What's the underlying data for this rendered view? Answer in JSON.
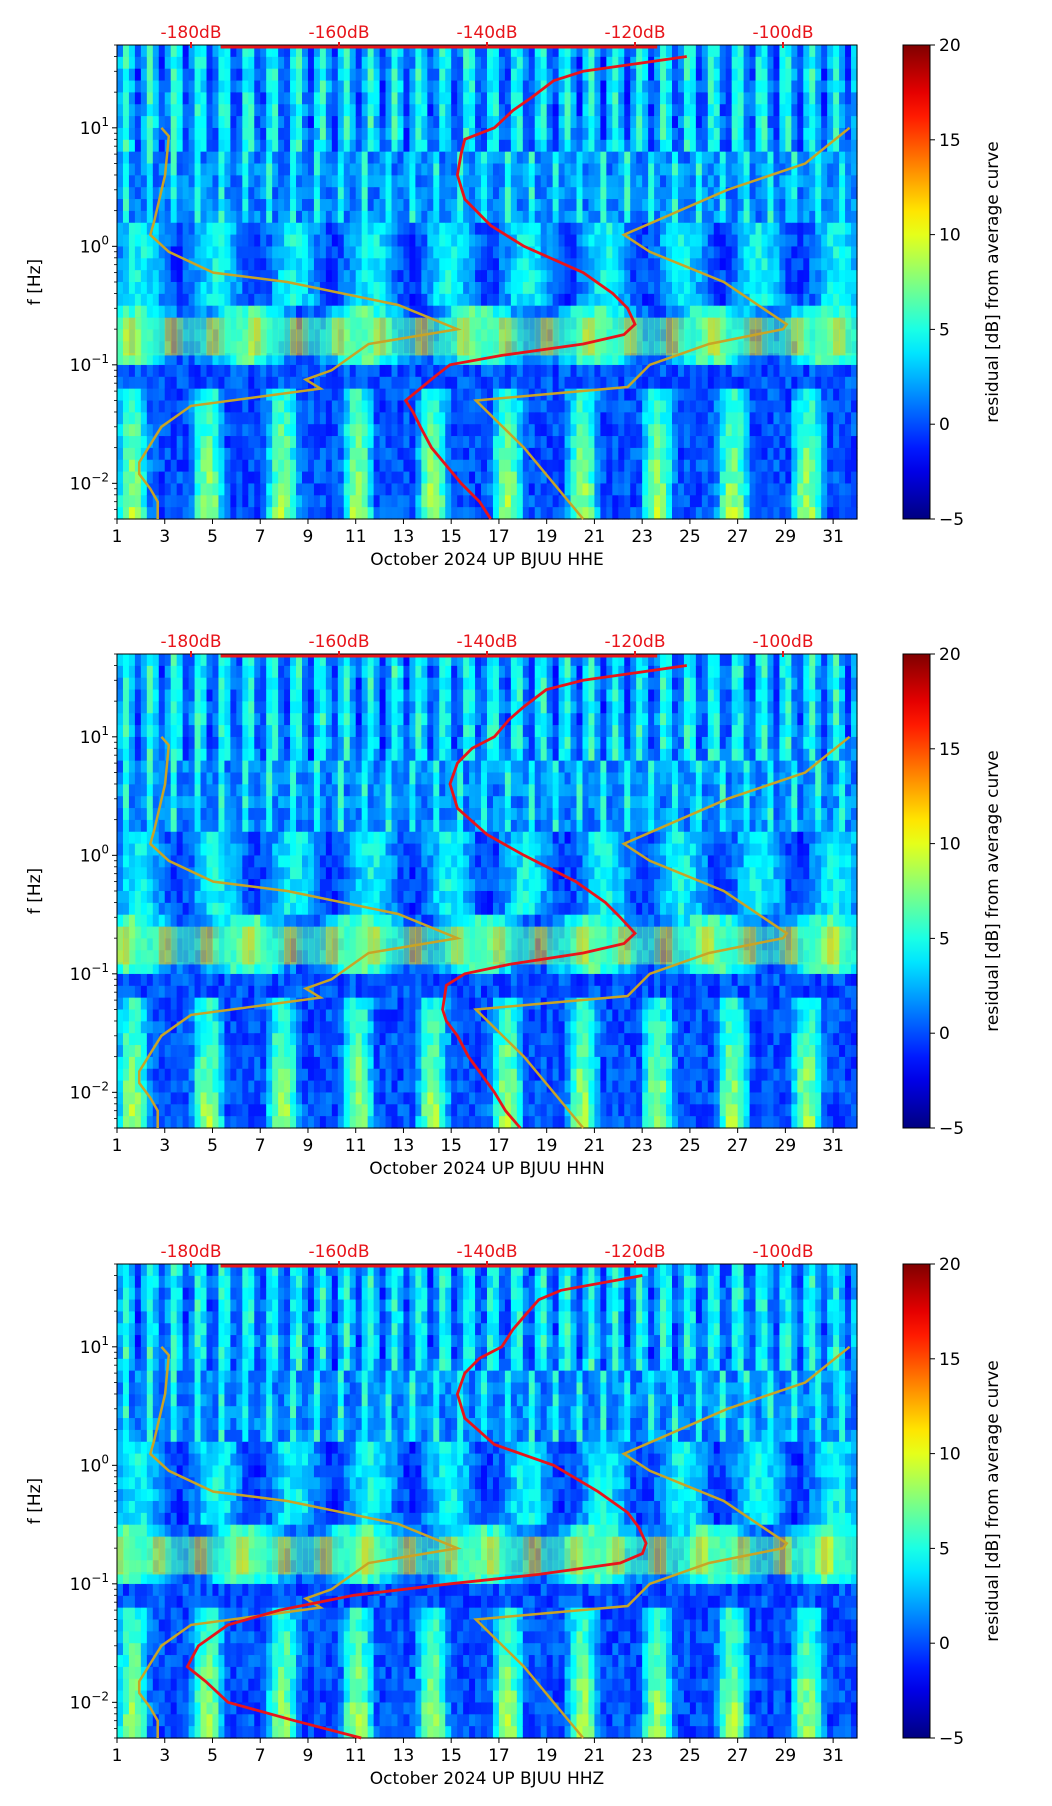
{
  "page": {
    "description_free": true
  },
  "palette": {
    "nlnm_color": "#c8a426",
    "average_color": "#e8141a",
    "db_label_color": "#e8141a"
  },
  "chart_data": [
    {
      "type": "heatmap",
      "station": "HHE",
      "xlabel": "October 2024 UP BJUU  HHE",
      "ylabel": "f [Hz]",
      "x_range": [
        1,
        32
      ],
      "x_ticks": [
        "1",
        "3",
        "5",
        "7",
        "9",
        "11",
        "13",
        "15",
        "17",
        "19",
        "21",
        "23",
        "25",
        "27",
        "29",
        "31"
      ],
      "y_range": [
        0.005,
        50
      ],
      "y_scale": "log",
      "y_ticks": [
        {
          "value": 0.01,
          "base": "10",
          "exp": "−2"
        },
        {
          "value": 0.1,
          "base": "10",
          "exp": "−1"
        },
        {
          "value": 1,
          "base": "10",
          "exp": "0"
        },
        {
          "value": 10,
          "base": "10",
          "exp": "1"
        }
      ],
      "db_axis": {
        "labels": [
          "-180dB",
          "-160dB",
          "-140dB",
          "-120dB",
          "-100dB"
        ],
        "values": [
          -180,
          -160,
          -140,
          -120,
          -100
        ],
        "range": [
          -190,
          -90
        ]
      },
      "colorbar": {
        "label": "residual [dB] from average curve",
        "range": [
          -5,
          20
        ],
        "ticks": [
          "−5",
          "0",
          "5",
          "10",
          "15",
          "20"
        ],
        "tick_values": [
          -5,
          0,
          5,
          10,
          15,
          20
        ],
        "colormap": "jet"
      },
      "nlnm_curve": {
        "freq": [
          10,
          8.5,
          4,
          1.6,
          1.25,
          0.9,
          0.6,
          0.5,
          0.32,
          0.2,
          0.15,
          0.09,
          0.075,
          0.063,
          0.045,
          0.03,
          0.015,
          0.012,
          0.009,
          0.007,
          0.005
        ],
        "db": [
          -184,
          -183,
          -183.5,
          -185,
          -185.5,
          -183,
          -177,
          -167,
          -152,
          -144,
          -156,
          -161,
          -164.5,
          -162.5,
          -180,
          -184,
          -187,
          -187,
          -185.5,
          -184.5,
          -184.5
        ]
      },
      "nhnm_curve": {
        "freq": [
          10,
          5,
          3,
          1.25,
          0.9,
          0.5,
          0.22,
          0.2,
          0.15,
          0.1,
          0.065,
          0.05,
          0.02,
          0.005
        ],
        "db": [
          -91,
          -97,
          -107.5,
          -121.5,
          -118,
          -108,
          -99.5,
          -100,
          -110,
          -118,
          -121,
          -141.5,
          -135,
          -127
        ]
      },
      "average_curve": {
        "freq": [
          40,
          30,
          25,
          18,
          14,
          10,
          8,
          6,
          4,
          2.5,
          1.5,
          1,
          0.6,
          0.4,
          0.3,
          0.22,
          0.18,
          0.15,
          0.12,
          0.1,
          0.08,
          0.05,
          0.04,
          0.03,
          0.02,
          0.01,
          0.007,
          0.005
        ],
        "db": [
          -113,
          -127,
          -131,
          -134,
          -136.5,
          -139,
          -143,
          -143.5,
          -144,
          -143,
          -139.5,
          -135,
          -127,
          -123,
          -121,
          -120,
          -121.5,
          -127,
          -138,
          -145,
          -147,
          -151,
          -150,
          -149,
          -147.5,
          -143.5,
          -141,
          -139.5
        ]
      }
    },
    {
      "type": "heatmap",
      "station": "HHN",
      "xlabel": "October 2024 UP BJUU  HHN",
      "ylabel": "f [Hz]",
      "x_range": [
        1,
        32
      ],
      "x_ticks": [
        "1",
        "3",
        "5",
        "7",
        "9",
        "11",
        "13",
        "15",
        "17",
        "19",
        "21",
        "23",
        "25",
        "27",
        "29",
        "31"
      ],
      "y_range": [
        0.005,
        50
      ],
      "y_scale": "log",
      "y_ticks": [
        {
          "value": 0.01,
          "base": "10",
          "exp": "−2"
        },
        {
          "value": 0.1,
          "base": "10",
          "exp": "−1"
        },
        {
          "value": 1,
          "base": "10",
          "exp": "0"
        },
        {
          "value": 10,
          "base": "10",
          "exp": "1"
        }
      ],
      "db_axis": {
        "labels": [
          "-180dB",
          "-160dB",
          "-140dB",
          "-120dB",
          "-100dB"
        ],
        "values": [
          -180,
          -160,
          -140,
          -120,
          -100
        ],
        "range": [
          -190,
          -90
        ]
      },
      "colorbar": {
        "label": "residual [dB] from average curve",
        "range": [
          -5,
          20
        ],
        "ticks": [
          "−5",
          "0",
          "5",
          "10",
          "15",
          "20"
        ],
        "tick_values": [
          -5,
          0,
          5,
          10,
          15,
          20
        ],
        "colormap": "jet"
      },
      "nlnm_curve": {
        "freq": [
          10,
          8.5,
          4,
          1.6,
          1.25,
          0.9,
          0.6,
          0.5,
          0.32,
          0.2,
          0.15,
          0.09,
          0.075,
          0.063,
          0.045,
          0.03,
          0.015,
          0.012,
          0.009,
          0.007,
          0.005
        ],
        "db": [
          -184,
          -183,
          -183.5,
          -185,
          -185.5,
          -183,
          -177,
          -167,
          -152,
          -144,
          -156,
          -161,
          -164.5,
          -162.5,
          -180,
          -184,
          -187,
          -187,
          -185.5,
          -184.5,
          -184.5
        ]
      },
      "nhnm_curve": {
        "freq": [
          10,
          5,
          3,
          1.25,
          0.9,
          0.5,
          0.22,
          0.2,
          0.15,
          0.1,
          0.065,
          0.05,
          0.02,
          0.005
        ],
        "db": [
          -91,
          -97,
          -107.5,
          -121.5,
          -118,
          -108,
          -99.5,
          -100,
          -110,
          -118,
          -121,
          -141.5,
          -135,
          -127
        ]
      },
      "average_curve": {
        "freq": [
          40,
          30,
          25,
          18,
          14,
          10,
          8,
          6,
          4,
          2.5,
          1.5,
          1,
          0.6,
          0.4,
          0.3,
          0.22,
          0.18,
          0.15,
          0.12,
          0.1,
          0.08,
          0.05,
          0.04,
          0.03,
          0.02,
          0.01,
          0.007,
          0.005
        ],
        "db": [
          -113,
          -127,
          -132,
          -135,
          -137,
          -139,
          -142,
          -144,
          -145,
          -144,
          -140,
          -135,
          -128,
          -124,
          -122,
          -120,
          -121.5,
          -127,
          -137,
          -143,
          -145.5,
          -146,
          -145.5,
          -144,
          -142.5,
          -139,
          -137.5,
          -135.5
        ]
      }
    },
    {
      "type": "heatmap",
      "station": "HHZ",
      "xlabel": "October 2024 UP BJUU  HHZ",
      "ylabel": "f [Hz]",
      "x_range": [
        1,
        32
      ],
      "x_ticks": [
        "1",
        "3",
        "5",
        "7",
        "9",
        "11",
        "13",
        "15",
        "17",
        "19",
        "21",
        "23",
        "25",
        "27",
        "29",
        "31"
      ],
      "y_range": [
        0.005,
        50
      ],
      "y_scale": "log",
      "y_ticks": [
        {
          "value": 0.01,
          "base": "10",
          "exp": "−2"
        },
        {
          "value": 0.1,
          "base": "10",
          "exp": "−1"
        },
        {
          "value": 1,
          "base": "10",
          "exp": "0"
        },
        {
          "value": 10,
          "base": "10",
          "exp": "1"
        }
      ],
      "db_axis": {
        "labels": [
          "-180dB",
          "-160dB",
          "-140dB",
          "-120dB",
          "-100dB"
        ],
        "values": [
          -180,
          -160,
          -140,
          -120,
          -100
        ],
        "range": [
          -190,
          -90
        ]
      },
      "colorbar": {
        "label": "residual [dB] from average curve",
        "range": [
          -5,
          20
        ],
        "ticks": [
          "−5",
          "0",
          "5",
          "10",
          "15",
          "20"
        ],
        "tick_values": [
          -5,
          0,
          5,
          10,
          15,
          20
        ],
        "colormap": "jet"
      },
      "nlnm_curve": {
        "freq": [
          10,
          8.5,
          4,
          1.6,
          1.25,
          0.9,
          0.6,
          0.5,
          0.32,
          0.2,
          0.15,
          0.09,
          0.075,
          0.063,
          0.045,
          0.03,
          0.015,
          0.012,
          0.009,
          0.007,
          0.005
        ],
        "db": [
          -184,
          -183,
          -183.5,
          -185,
          -185.5,
          -183,
          -177,
          -167,
          -152,
          -144,
          -156,
          -161,
          -164.5,
          -162.5,
          -180,
          -184,
          -187,
          -187,
          -185.5,
          -184.5,
          -184.5
        ]
      },
      "nhnm_curve": {
        "freq": [
          10,
          5,
          3,
          1.25,
          0.9,
          0.5,
          0.22,
          0.2,
          0.15,
          0.1,
          0.065,
          0.05,
          0.02,
          0.005
        ],
        "db": [
          -91,
          -97,
          -107.5,
          -121.5,
          -118,
          -108,
          -99.5,
          -100,
          -110,
          -118,
          -121,
          -141.5,
          -135,
          -127
        ]
      },
      "average_curve": {
        "freq": [
          40,
          30,
          25,
          18,
          14,
          10,
          8,
          6,
          4,
          2.5,
          1.5,
          1,
          0.6,
          0.4,
          0.3,
          0.22,
          0.18,
          0.15,
          0.12,
          0.1,
          0.08,
          0.06,
          0.045,
          0.03,
          0.02,
          0.015,
          0.01,
          0.007,
          0.005
        ],
        "db": [
          -119,
          -130,
          -133,
          -135,
          -136.5,
          -138,
          -141,
          -143,
          -144,
          -143,
          -139,
          -131,
          -125,
          -121,
          -119.5,
          -118.5,
          -119,
          -122,
          -133,
          -145,
          -158,
          -168,
          -175,
          -179,
          -180.5,
          -178,
          -175,
          -166,
          -157
        ]
      }
    }
  ]
}
